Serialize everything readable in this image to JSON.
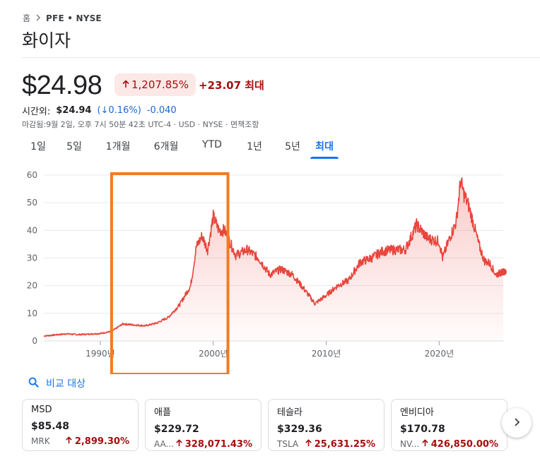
{
  "breadcrumb": {
    "home": "홈",
    "ticker": "PFE • NYSE"
  },
  "company": "화이자",
  "quote": {
    "price": "$24.98",
    "pct_change": "1,207.85%",
    "change": "+23.07 최대",
    "after_hours_label": "시간외:",
    "after_hours_price": "$24.94",
    "after_hours_pct": "(↓0.16%)",
    "after_hours_change": "-0.040",
    "meta": "마감됨:9월 2일, 오후 7시 50분 42초 UTC-4 · USD · NYSE · 면책조항"
  },
  "tabs": [
    "1일",
    "5일",
    "1개월",
    "6개월",
    "YTD",
    "1년",
    "5년",
    "최대"
  ],
  "active_tab": "최대",
  "colors": {
    "up": "#a50e0e",
    "line": "#e8453c",
    "accent": "#1a73e8",
    "highlight": "#f47b20"
  },
  "chart_data": {
    "type": "area",
    "x": [
      1985.0,
      1986.0,
      1987.0,
      1988.0,
      1989.0,
      1990.0,
      1991.0,
      1992.0,
      1993.0,
      1994.0,
      1995.0,
      1996.0,
      1997.0,
      1998.0,
      1998.5,
      1999.0,
      1999.5,
      2000.0,
      2000.5,
      2001.0,
      2002.0,
      2003.0,
      2004.0,
      2005.0,
      2006.0,
      2007.0,
      2008.0,
      2009.0,
      2010.0,
      2011.0,
      2012.0,
      2013.0,
      2014.0,
      2015.0,
      2016.0,
      2017.0,
      2018.0,
      2019.0,
      2020.0,
      2020.3,
      2021.0,
      2021.5,
      2021.9,
      2022.2,
      2022.6,
      2023.0,
      2023.5,
      2024.0,
      2024.5,
      2025.0,
      2025.67
    ],
    "y": [
      1.8,
      2.2,
      2.6,
      2.3,
      2.5,
      2.7,
      3.5,
      6.2,
      5.8,
      5.5,
      6.5,
      8.5,
      13.0,
      20.0,
      34.0,
      38.0,
      33.0,
      45.0,
      40.0,
      40.0,
      31.0,
      33.0,
      30.0,
      24.0,
      26.0,
      24.0,
      19.0,
      13.5,
      16.5,
      20.0,
      22.0,
      28.5,
      30.0,
      32.5,
      33.0,
      33.0,
      42.0,
      37.0,
      36.0,
      30.0,
      38.0,
      43.0,
      58.0,
      53.0,
      49.0,
      43.0,
      35.0,
      29.0,
      28.0,
      24.0,
      24.98
    ],
    "yticks": [
      0,
      10,
      20,
      30,
      40,
      50,
      60
    ],
    "xticks": [
      {
        "value": 1990,
        "label": "1990년"
      },
      {
        "value": 2000,
        "label": "2000년"
      },
      {
        "value": 2010,
        "label": "2010년"
      },
      {
        "value": 2020,
        "label": "2020년"
      }
    ],
    "xlim": [
      1985.0,
      2025.67
    ],
    "ylim": [
      0,
      60
    ],
    "grid": true,
    "highlight_range": [
      1991.0,
      2001.3
    ]
  },
  "compare_label": "비교 대상",
  "cards": [
    {
      "name": "MSD",
      "price": "$85.48",
      "ticker": "MRK",
      "pct": "2,899.30%"
    },
    {
      "name": "애플",
      "price": "$229.72",
      "ticker": "AA...",
      "pct": "328,071.43%"
    },
    {
      "name": "테슬라",
      "price": "$329.36",
      "ticker": "TSLA",
      "pct": "25,631.25%"
    },
    {
      "name": "엔비디아",
      "price": "$170.78",
      "ticker": "NV...",
      "pct": "426,850.00%"
    }
  ]
}
